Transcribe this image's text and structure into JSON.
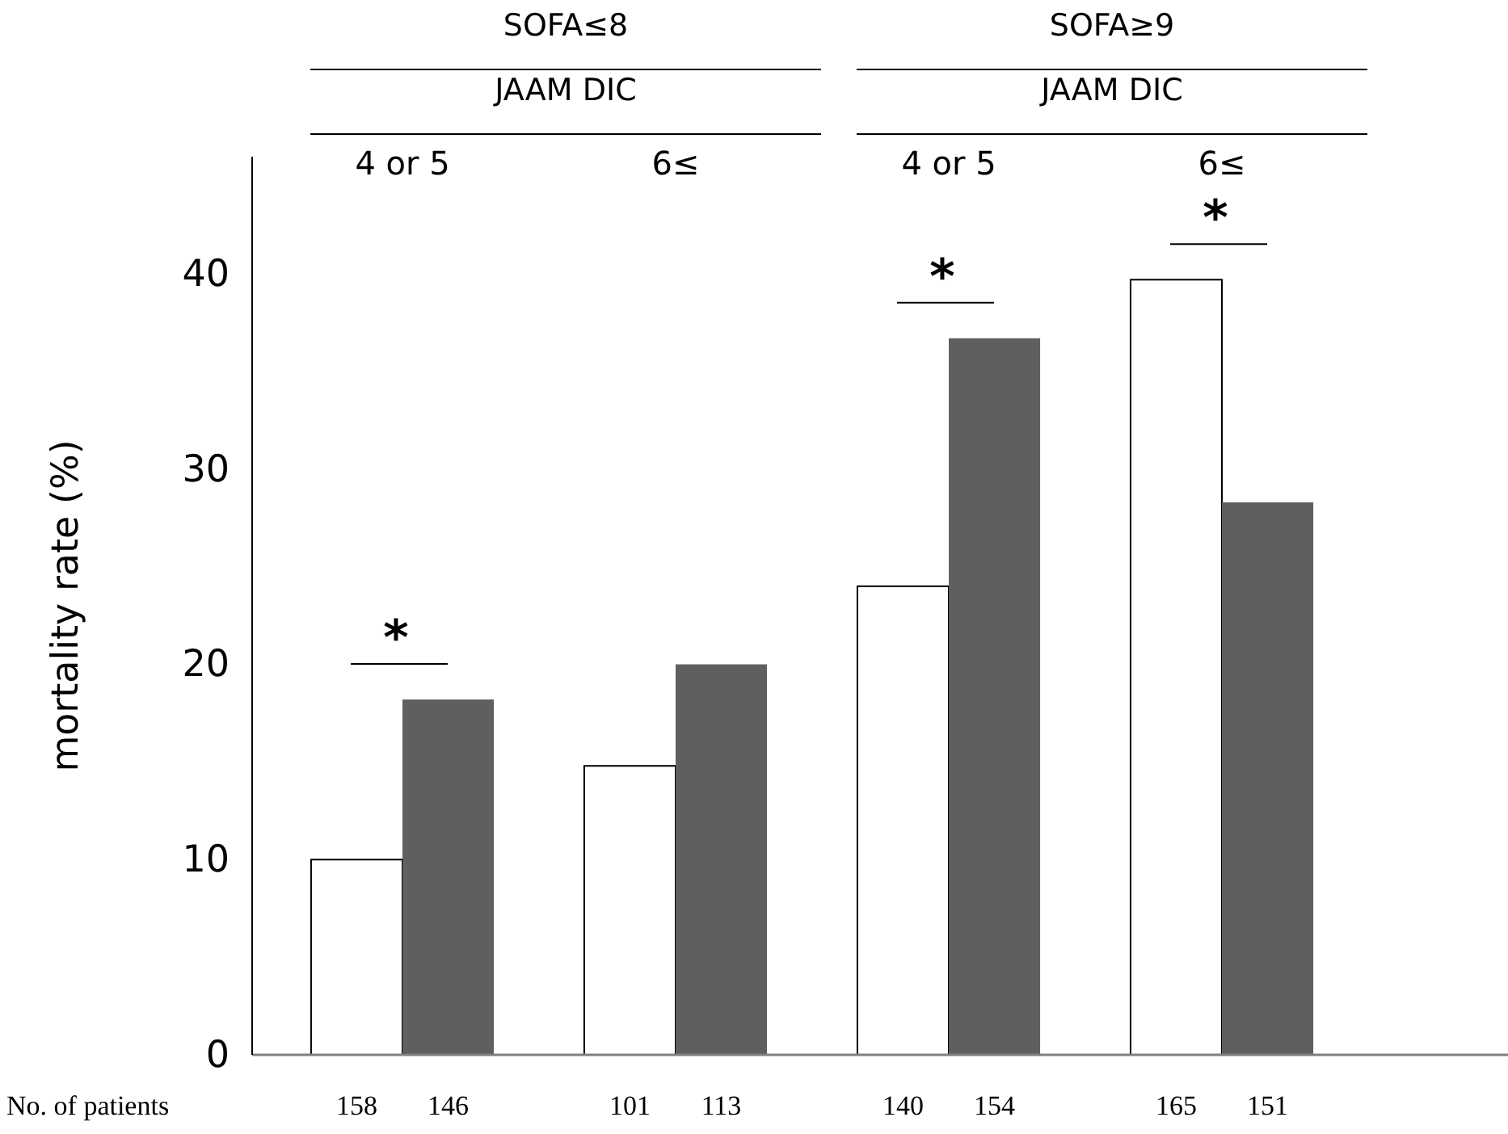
{
  "chart_data": {
    "type": "bar",
    "categories": [
      "4 or 5",
      "6≤",
      "4 or 5",
      "6≤"
    ],
    "series": [
      {
        "color": "#ffffff",
        "values": [
          10.0,
          14.8,
          24.0,
          39.7
        ]
      },
      {
        "color": "#5f5f5f",
        "values": [
          18.2,
          20.0,
          36.7,
          28.3
        ]
      }
    ],
    "ylabel": "mortality rate (%)",
    "ylim": [
      0,
      46
    ],
    "yticks": [
      0,
      10,
      20,
      30,
      40
    ],
    "grid": false,
    "annotations": [
      "SOFA≤8",
      "JAAM DIC",
      "SOFA≥9",
      "JAAM DIC",
      "No. of patients",
      "158",
      "146",
      "101",
      "113",
      "140",
      "154",
      "165",
      "151",
      "*",
      "*",
      "*"
    ]
  }
}
